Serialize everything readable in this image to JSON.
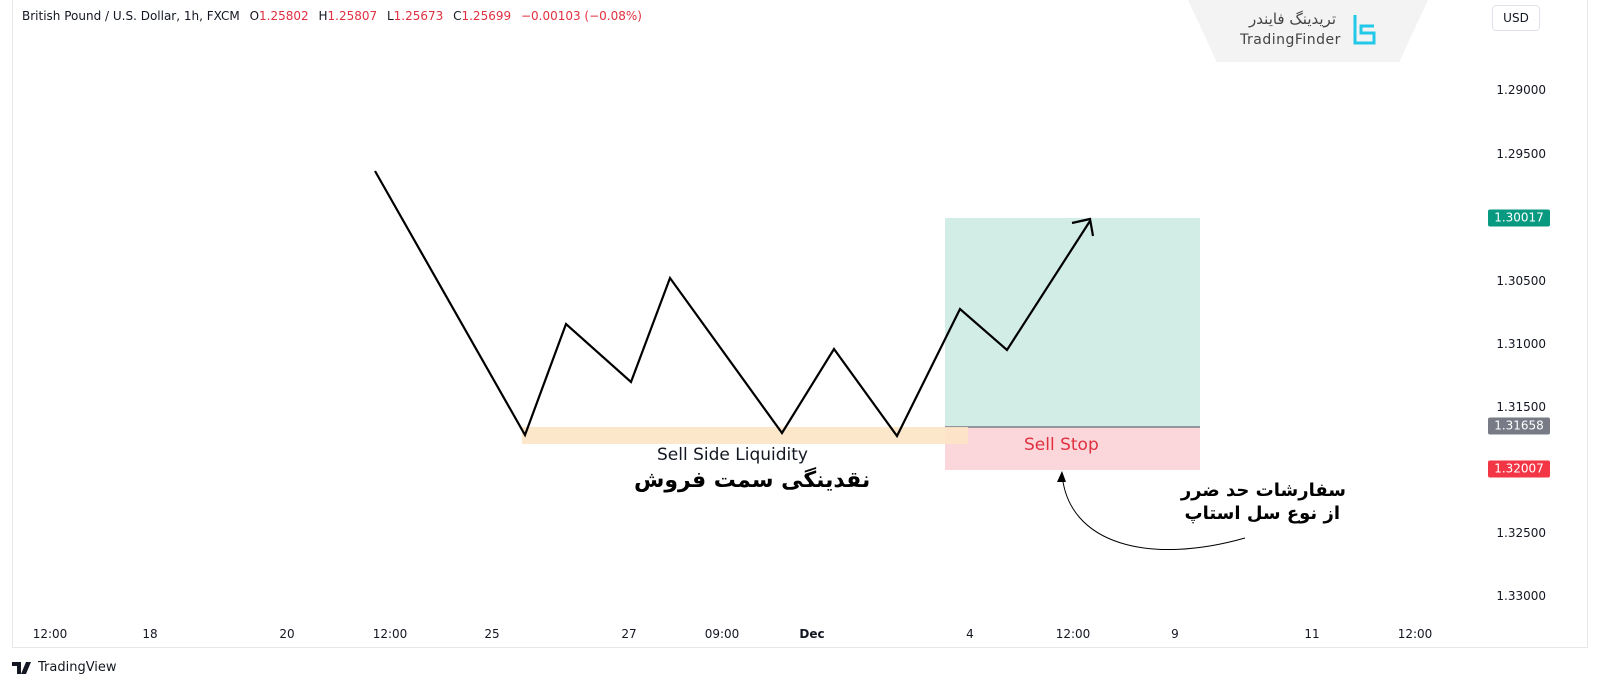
{
  "legend": {
    "symbol": "British Pound / U.S. Dollar, 1h, FXCM",
    "o_label": "O",
    "o": "1.25802",
    "h_label": "H",
    "h": "1.25807",
    "l_label": "L",
    "l": "1.25673",
    "c_label": "C",
    "c": "1.25699",
    "change": "−0.00103 (−0.08%)"
  },
  "logo": {
    "fa": "تریدینگ فایندر",
    "en": "TradingFinder"
  },
  "currency": "USD",
  "price_axis": {
    "ticks": [
      "1.29000",
      "1.29500",
      "1.30500",
      "1.31000",
      "1.31500",
      "1.32500",
      "1.33000"
    ],
    "badges": {
      "target": "1.30017",
      "entry": "1.31658",
      "stop": "1.32007"
    }
  },
  "time_axis": [
    "12:00",
    "18",
    "20",
    "12:00",
    "25",
    "27",
    "09:00",
    "Dec",
    "4",
    "12:00",
    "9",
    "11",
    "12:00"
  ],
  "annotations": {
    "liquidity_en": "Sell Side Liquidity",
    "liquidity_fa": "نقدینگی سمت فروش",
    "sell_stop": "Sell Stop",
    "note_fa_1": "سفارشات حد ضرر",
    "note_fa_2": "از نوع سل استاپ"
  },
  "colors": {
    "up": "#089981",
    "down": "#f23645",
    "entry": "#787b86",
    "target_zone": "#d2ece6",
    "stop_zone": "#fbd6da",
    "liquidity": "#fde4c4"
  },
  "footer": "TradingView"
}
